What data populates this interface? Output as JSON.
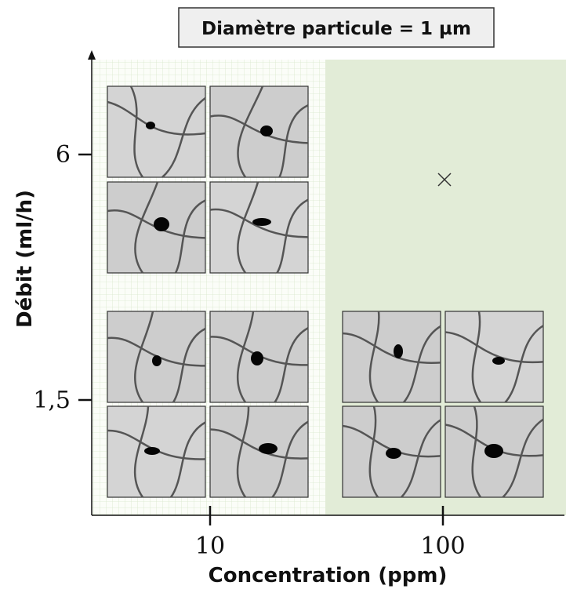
{
  "title": "Diamètre particule = 1 µm",
  "x_axis": {
    "label": "Concentration (ppm)",
    "ticks": [
      "10",
      "100"
    ]
  },
  "y_axis": {
    "label": "Débit (ml/h)",
    "ticks": [
      "6",
      "1,5"
    ]
  }
}
